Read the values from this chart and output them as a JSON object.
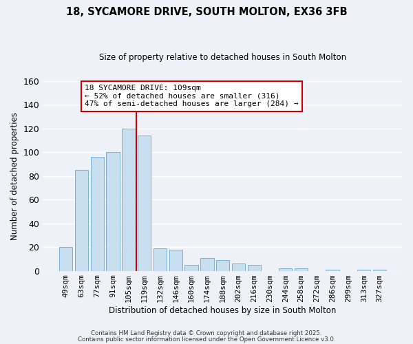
{
  "title": "18, SYCAMORE DRIVE, SOUTH MOLTON, EX36 3FB",
  "subtitle": "Size of property relative to detached houses in South Molton",
  "xlabel": "Distribution of detached houses by size in South Molton",
  "ylabel": "Number of detached properties",
  "bar_labels": [
    "49sqm",
    "63sqm",
    "77sqm",
    "91sqm",
    "105sqm",
    "119sqm",
    "132sqm",
    "146sqm",
    "160sqm",
    "174sqm",
    "188sqm",
    "202sqm",
    "216sqm",
    "230sqm",
    "244sqm",
    "258sqm",
    "272sqm",
    "286sqm",
    "299sqm",
    "313sqm",
    "327sqm"
  ],
  "bar_values": [
    20,
    85,
    96,
    100,
    120,
    114,
    19,
    18,
    5,
    11,
    9,
    6,
    5,
    0,
    2,
    2,
    0,
    1,
    0,
    1,
    1
  ],
  "bar_color": "#c8dff0",
  "bar_edge_color": "#7ab0d4",
  "vline_x_idx": 4,
  "vline_color": "#cc0000",
  "annotation_title": "18 SYCAMORE DRIVE: 109sqm",
  "annotation_line1": "← 52% of detached houses are smaller (316)",
  "annotation_line2": "47% of semi-detached houses are larger (284) →",
  "annotation_box_color": "#ffffff",
  "annotation_box_edge": "#cc0000",
  "bg_color": "#eef2f8",
  "grid_color": "#ffffff",
  "ylim": [
    0,
    160
  ],
  "yticks": [
    0,
    20,
    40,
    60,
    80,
    100,
    120,
    140,
    160
  ],
  "footer1": "Contains HM Land Registry data © Crown copyright and database right 2025.",
  "footer2": "Contains public sector information licensed under the Open Government Licence v3.0."
}
